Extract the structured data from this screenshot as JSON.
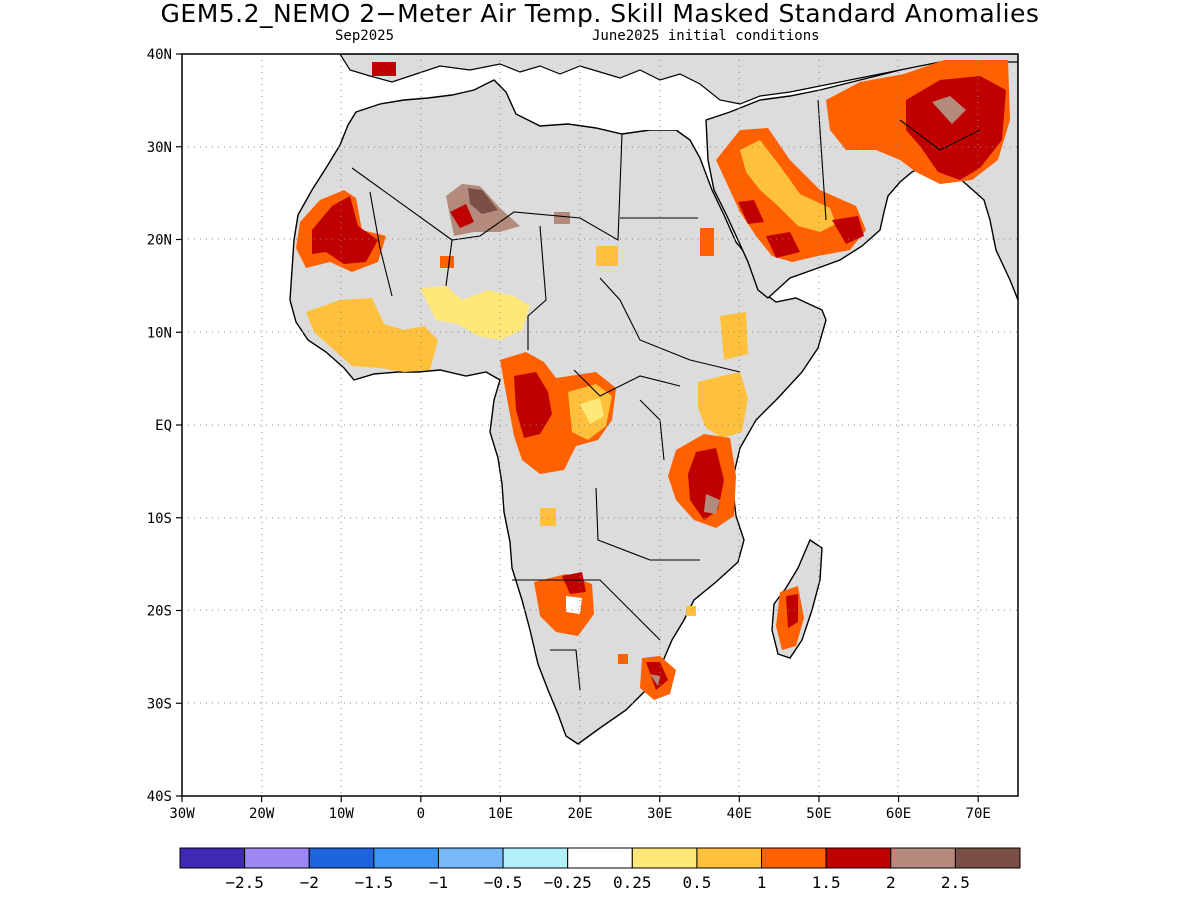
{
  "title": "GEM5.2_NEMO 2−Meter Air Temp. Skill Masked Standard Anomalies",
  "subtitle_left": "Sep2025",
  "subtitle_right": "June2025 initial conditions",
  "map": {
    "lon_range": [
      -30,
      75
    ],
    "lat_range": [
      -40,
      40
    ],
    "lat_ticks": [
      {
        "value": 40,
        "label": "40N"
      },
      {
        "value": 30,
        "label": "30N"
      },
      {
        "value": 20,
        "label": "20N"
      },
      {
        "value": 10,
        "label": "10N"
      },
      {
        "value": 0,
        "label": "EQ"
      },
      {
        "value": -10,
        "label": "10S"
      },
      {
        "value": -20,
        "label": "20S"
      },
      {
        "value": -30,
        "label": "30S"
      },
      {
        "value": -40,
        "label": "40S"
      }
    ],
    "lon_ticks": [
      {
        "value": -30,
        "label": "30W"
      },
      {
        "value": -20,
        "label": "20W"
      },
      {
        "value": -10,
        "label": "10W"
      },
      {
        "value": 0,
        "label": "0"
      },
      {
        "value": 10,
        "label": "10E"
      },
      {
        "value": 20,
        "label": "20E"
      },
      {
        "value": 30,
        "label": "30E"
      },
      {
        "value": 40,
        "label": "40E"
      },
      {
        "value": 50,
        "label": "50E"
      },
      {
        "value": 60,
        "label": "60E"
      },
      {
        "value": 70,
        "label": "70E"
      }
    ],
    "grid": "dotted",
    "masked_land_color": "#dcdcdc"
  },
  "colorbar": {
    "colors": [
      "#3f28b4",
      "#9c87f5",
      "#1e64dc",
      "#3c96f5",
      "#78b9fa",
      "#b4f0fa",
      "#ffffff",
      "#ffe878",
      "#ffc03c",
      "#ff6000",
      "#c00000",
      "#b48a7d",
      "#7a4f46"
    ],
    "labels": [
      "−2.5",
      "−2",
      "−1.5",
      "−1",
      "−0.5",
      "−0.25",
      "0.25",
      "0.5",
      "1",
      "1.5",
      "2",
      "2.5"
    ]
  }
}
